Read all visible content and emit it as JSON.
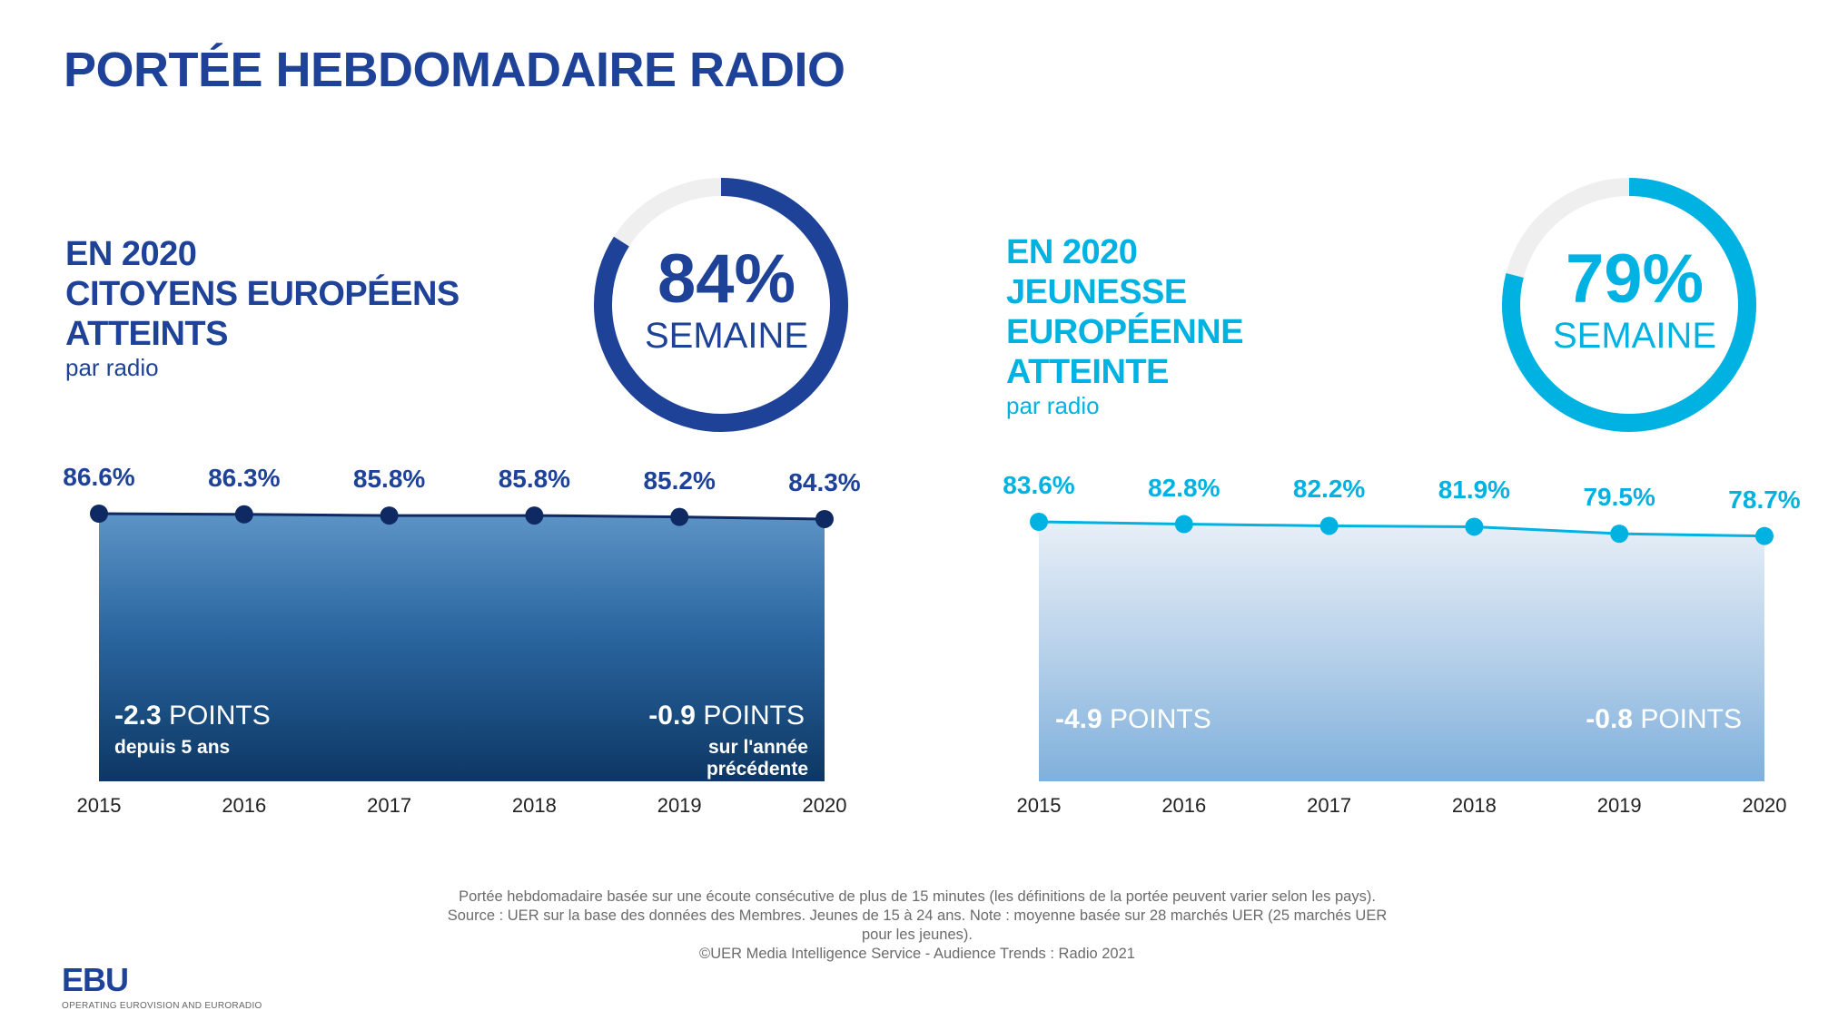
{
  "title": "PORTÉE HEBDOMADAIRE RADIO",
  "colors": {
    "dark_blue": "#1e4298",
    "navy": "#0f2a63",
    "cyan": "#00b2e2",
    "ring_bg": "#efefef"
  },
  "left_panel": {
    "heading_lines": [
      "EN 2020",
      "CITOYENS EUROPÉENS",
      "ATTEINTS"
    ],
    "subheading": "par radio",
    "donut": {
      "percent_text": "84%",
      "label": "SEMAINE",
      "value": 84
    },
    "annotations": {
      "five_year": {
        "value": "-2.3",
        "unit": "POINTS",
        "note": "depuis 5 ans"
      },
      "prev_year": {
        "value": "-0.9",
        "unit": "POINTS",
        "note_lines": [
          "sur l'année",
          "précédente"
        ]
      }
    }
  },
  "right_panel": {
    "heading_lines": [
      "EN 2020",
      "JEUNESSE",
      "EUROPÉENNE",
      "ATTEINTE"
    ],
    "subheading": "par radio",
    "donut": {
      "percent_text": "79%",
      "label": "SEMAINE",
      "value": 79
    },
    "annotations": {
      "five_year": {
        "value": "-4.9",
        "unit": "POINTS"
      },
      "prev_year": {
        "value": "-0.8",
        "unit": "POINTS"
      }
    }
  },
  "chart_data": [
    {
      "type": "line",
      "title": "Citoyens européens atteints par radio (portée hebdomadaire)",
      "x": [
        "2015",
        "2016",
        "2017",
        "2018",
        "2019",
        "2020"
      ],
      "values": [
        86.6,
        86.3,
        85.8,
        85.8,
        85.2,
        84.3
      ],
      "labels": [
        "86.6%",
        "86.3%",
        "85.8%",
        "85.8%",
        "85.2%",
        "84.3%"
      ],
      "ylim": [
        0,
        90
      ],
      "grid": false
    },
    {
      "type": "line",
      "title": "Jeunesse européenne atteinte par radio (portée hebdomadaire)",
      "x": [
        "2015",
        "2016",
        "2017",
        "2018",
        "2019",
        "2020"
      ],
      "values": [
        83.6,
        82.8,
        82.2,
        81.9,
        79.5,
        78.7
      ],
      "labels": [
        "83.6%",
        "82.8%",
        "82.2%",
        "81.9%",
        "79.5%",
        "78.7%"
      ],
      "ylim": [
        0,
        90
      ],
      "grid": false
    }
  ],
  "footer": {
    "lines": [
      "Portée hebdomadaire basée sur une écoute consécutive de plus de 15 minutes (les définitions de la portée peuvent varier selon les pays).",
      "Source : UER sur la base des données des Membres. Jeunes de 15 à 24 ans. Note : moyenne basée sur 28 marchés UER (25 marchés UER",
      "pour les jeunes).",
      "©UER Media Intelligence Service - Audience Trends : Radio 2021"
    ]
  },
  "logo": {
    "name": "EBU",
    "tagline": "OPERATING EUROVISION AND EURORADIO"
  }
}
